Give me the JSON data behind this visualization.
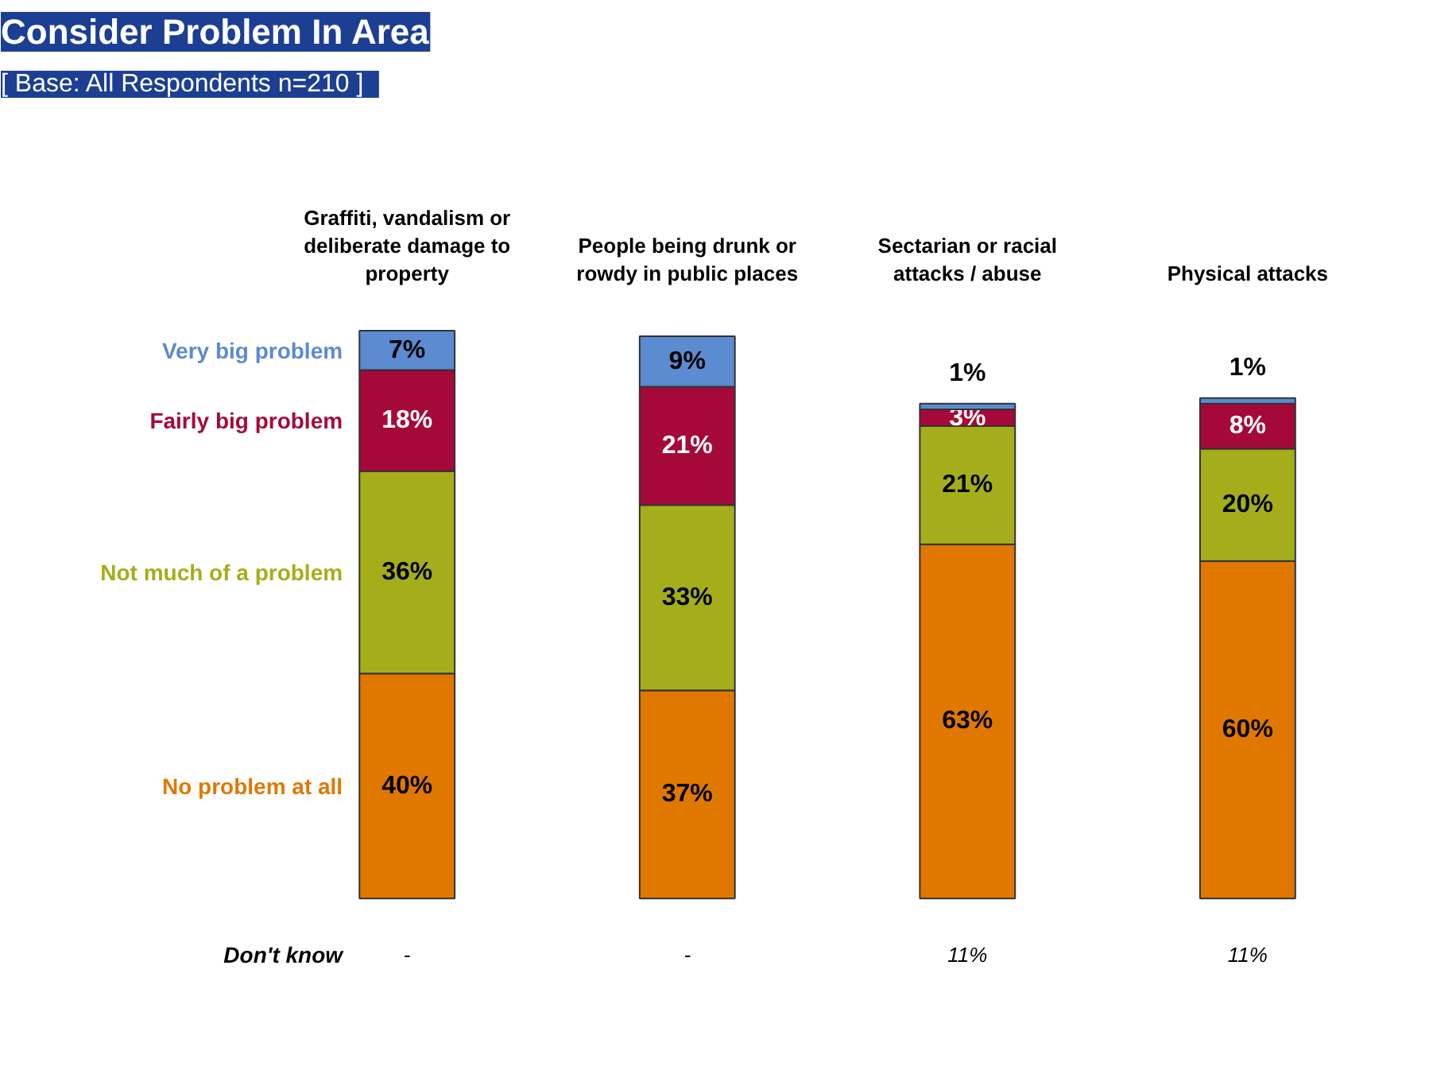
{
  "chart_data": {
    "type": "bar",
    "stacked": true,
    "title": "Consider Problem In Area",
    "subtitle": "[ Base:   All Respondents n=210 ]",
    "categories": [
      "Graffiti, vandalism or deliberate damage to property",
      "People being drunk or rowdy in public places",
      "Sectarian or racial attacks / abuse",
      "Physical attacks"
    ],
    "series": [
      {
        "name": "No problem at all",
        "color": "#e07800",
        "values": [
          40,
          37,
          63,
          60
        ],
        "value_labels": [
          "40%",
          "37%",
          "63%",
          "60%"
        ]
      },
      {
        "name": "Not much of a problem",
        "color": "#a5ae1a",
        "values": [
          36,
          33,
          21,
          20
        ],
        "value_labels": [
          "36%",
          "33%",
          "21%",
          "20%"
        ]
      },
      {
        "name": "Fairly big problem",
        "color": "#a5093a",
        "values": [
          18,
          21,
          3,
          8
        ],
        "value_labels": [
          "18%",
          "21%",
          "3%",
          "8%"
        ]
      },
      {
        "name": "Very big problem",
        "color": "#5b8bd0",
        "values": [
          7,
          9,
          1,
          1
        ],
        "value_labels": [
          "7%",
          "9%",
          "1%",
          "1%"
        ]
      }
    ],
    "annotations": [
      "Don't know",
      "-",
      "-",
      "11%",
      "11%"
    ],
    "legend": false,
    "grid": false
  }
}
